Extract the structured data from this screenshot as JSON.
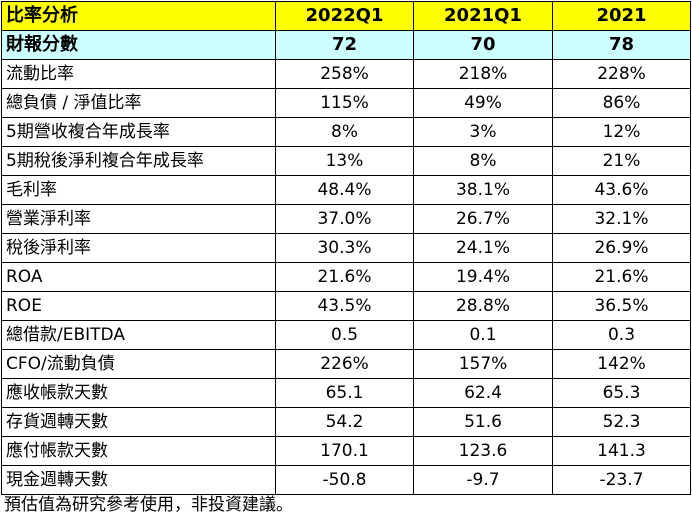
{
  "header": {
    "title": "比率分析",
    "columns": [
      "2022Q1",
      "2021Q1",
      "2021"
    ]
  },
  "score_row": {
    "label": "財報分數",
    "values": [
      "72",
      "70",
      "78"
    ]
  },
  "rows": [
    {
      "label": "流動比率",
      "values": [
        "258%",
        "218%",
        "228%"
      ]
    },
    {
      "label": "總負債 / 淨值比率",
      "values": [
        "115%",
        "49%",
        "86%"
      ]
    },
    {
      "label": "5期營收複合年成長率",
      "values": [
        "8%",
        "3%",
        "12%"
      ]
    },
    {
      "label": "5期稅後淨利複合年成長率",
      "values": [
        "13%",
        "8%",
        "21%"
      ]
    },
    {
      "label": "毛利率",
      "values": [
        "48.4%",
        "38.1%",
        "43.6%"
      ]
    },
    {
      "label": "營業淨利率",
      "values": [
        "37.0%",
        "26.7%",
        "32.1%"
      ]
    },
    {
      "label": "稅後淨利率",
      "values": [
        "30.3%",
        "24.1%",
        "26.9%"
      ]
    },
    {
      "label": "ROA",
      "values": [
        "21.6%",
        "19.4%",
        "21.6%"
      ]
    },
    {
      "label": "ROE",
      "values": [
        "43.5%",
        "28.8%",
        "36.5%"
      ]
    },
    {
      "label": "總借款/EBITDA",
      "values": [
        "0.5",
        "0.1",
        "0.3"
      ]
    },
    {
      "label": "CFO/流動負債",
      "values": [
        "226%",
        "157%",
        "142%"
      ]
    },
    {
      "label": "應收帳款天數",
      "values": [
        "65.1",
        "62.4",
        "65.3"
      ]
    },
    {
      "label": "存貨週轉天數",
      "values": [
        "54.2",
        "51.6",
        "52.3"
      ]
    },
    {
      "label": "應付帳款天數",
      "values": [
        "170.1",
        "123.6",
        "141.3"
      ]
    },
    {
      "label": "現金週轉天數",
      "values": [
        "-50.8",
        "-9.7",
        "-23.7"
      ]
    }
  ],
  "footnote": "預估值為研究參考使用，非投資建議。",
  "colors": {
    "header_bg": "#ffff00",
    "score_bg": "#ccffff",
    "border": "#000000"
  }
}
